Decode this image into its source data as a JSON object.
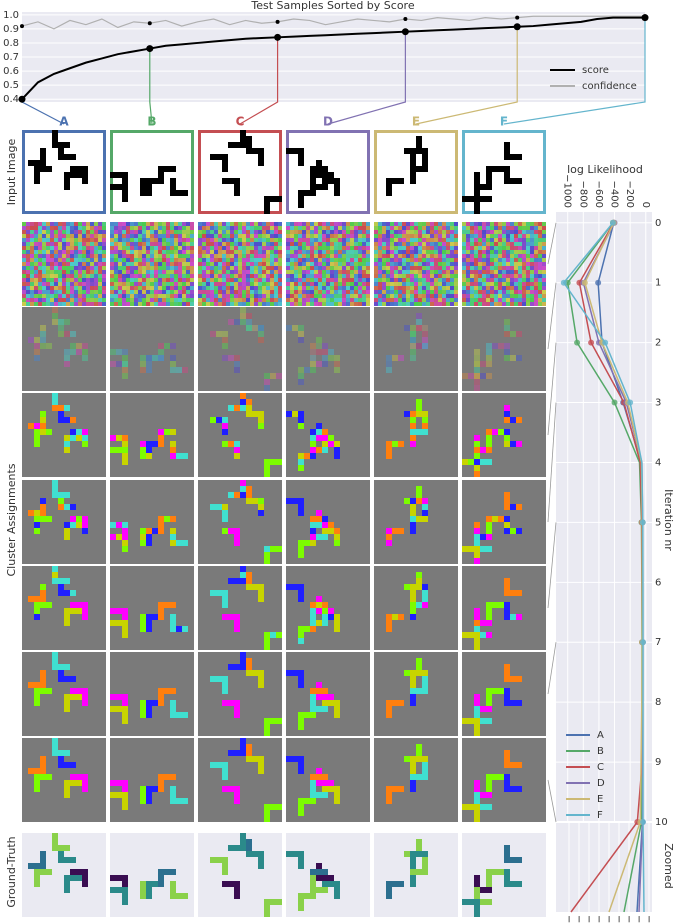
{
  "chart_data": [
    {
      "type": "line",
      "title": "Test Samples Sorted by Score",
      "series": [
        {
          "name": "score",
          "color": "#000000",
          "values": [
            0.4,
            0.52,
            0.58,
            0.62,
            0.66,
            0.69,
            0.72,
            0.74,
            0.76,
            0.78,
            0.79,
            0.8,
            0.81,
            0.82,
            0.83,
            0.835,
            0.84,
            0.845,
            0.85,
            0.855,
            0.86,
            0.865,
            0.87,
            0.875,
            0.88,
            0.885,
            0.89,
            0.895,
            0.9,
            0.905,
            0.91,
            0.915,
            0.92,
            0.93,
            0.94,
            0.95,
            0.97,
            0.98,
            0.98,
            0.98
          ]
        },
        {
          "name": "confidence",
          "color": "#b0b0b0",
          "values": [
            0.92,
            0.95,
            0.9,
            0.96,
            0.93,
            0.97,
            0.91,
            0.95,
            0.94,
            0.96,
            0.92,
            0.95,
            0.97,
            0.93,
            0.96,
            0.94,
            0.95,
            0.97,
            0.96,
            0.93,
            0.95,
            0.97,
            0.96,
            0.95,
            0.97,
            0.96,
            0.98,
            0.97,
            0.96,
            0.98,
            0.97,
            0.98,
            0.99,
            0.99,
            0.99,
            0.99,
            0.99,
            0.99,
            0.99,
            0.99
          ]
        }
      ],
      "ylim": [
        0.38,
        1.02
      ],
      "yticks": [
        0.4,
        0.5,
        0.6,
        0.7,
        0.8,
        0.9,
        {
          "value": 1,
          "label": "1.0"
        }
      ],
      "grid": true,
      "legend": "lower right"
    },
    {
      "type": "line",
      "xlabel": "log Likelihood",
      "ylabel": "Iteration nr",
      "y": [
        0,
        1,
        2,
        3,
        4,
        5,
        6,
        7,
        8,
        9,
        10
      ],
      "series": [
        {
          "name": "A",
          "color": "#4c72b0",
          "values": [
            -410,
            -610,
            -560,
            -290,
            -60,
            -45,
            -42,
            -40,
            -40,
            -38,
            -42
          ]
        },
        {
          "name": "B",
          "color": "#55a868",
          "values": [
            -420,
            -1000,
            -880,
            -400,
            -80,
            -55,
            -50,
            -48,
            -48,
            -47,
            -55
          ]
        },
        {
          "name": "C",
          "color": "#c44e52",
          "values": [
            -410,
            -850,
            -700,
            -280,
            -70,
            -50,
            -48,
            -45,
            -45,
            -45,
            -108
          ]
        },
        {
          "name": "D",
          "color": "#8172b2",
          "values": [
            -400,
            -800,
            -600,
            -250,
            -50,
            -40,
            -38,
            -38,
            -38,
            -38,
            -40
          ]
        },
        {
          "name": "E",
          "color": "#ccb974",
          "values": [
            -410,
            -780,
            -560,
            -230,
            -55,
            -45,
            -45,
            -45,
            -50,
            -60,
            -70
          ]
        },
        {
          "name": "F",
          "color": "#64b5cd",
          "values": [
            -420,
            -1050,
            -520,
            -200,
            -50,
            -38,
            -36,
            -35,
            -35,
            -35,
            -35
          ]
        }
      ],
      "xlim": [
        -1150,
        80
      ],
      "xticks": [
        {
          "value": -1000,
          "label": "−1000"
        },
        {
          "value": -800,
          "label": "−800"
        },
        {
          "value": -600,
          "label": "−600"
        },
        {
          "value": -400,
          "label": "−400"
        },
        {
          "value": -200,
          "label": "−200"
        },
        0
      ],
      "ylim": [
        -0.18,
        10
      ],
      "yticks": [
        0,
        1,
        2,
        3,
        4,
        5,
        6,
        7,
        8,
        9,
        10
      ],
      "zoom_label": "Zoomed",
      "zoom_xlim": [
        -123,
        -27
      ],
      "zoom_xticks": [
        {
          "value": -110,
          "label": "−110"
        },
        {
          "value": -100,
          "label": "−100"
        },
        {
          "value": -90,
          "label": "−90"
        },
        {
          "value": -80,
          "label": "−80"
        },
        {
          "value": -70,
          "label": "−70"
        },
        {
          "value": -60,
          "label": "−60"
        },
        {
          "value": -50,
          "label": "−50"
        },
        {
          "value": -40,
          "label": "−40"
        },
        {
          "value": -30,
          "label": "−30"
        }
      ],
      "grid": true,
      "legend": "lower left"
    }
  ],
  "panel": {
    "columns": [
      "A",
      "B",
      "C",
      "D",
      "E",
      "F"
    ],
    "row_labels": [
      "Input Image",
      "Cluster Assignments",
      "Ground-Truth"
    ]
  }
}
